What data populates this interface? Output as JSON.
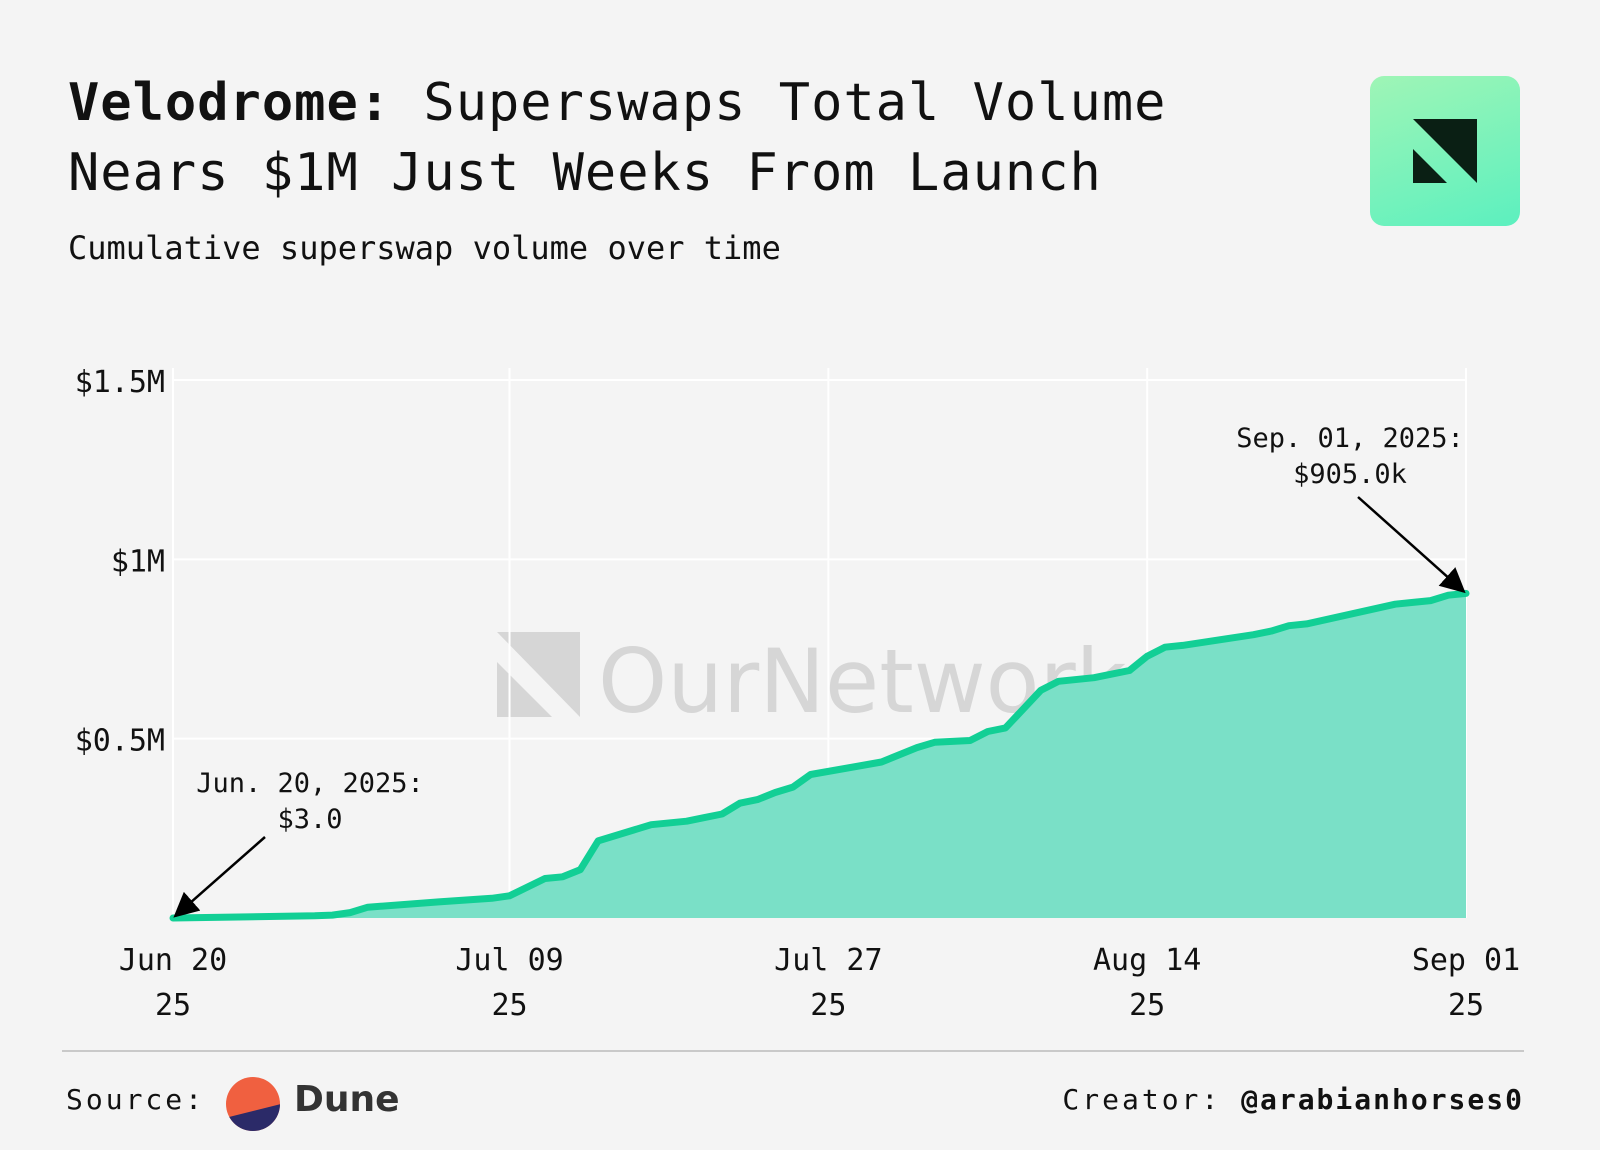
{
  "header": {
    "title_brand": "Velodrome:",
    "title_rest": " Superswaps Total Volume Nears $1M Just Weeks From Launch",
    "subtitle": "Cumulative superswap volume over time"
  },
  "footer": {
    "source_label": "Source:",
    "source_name": "Dune",
    "creator_label": "Creator:",
    "creator_handle": "@arabianhorses0"
  },
  "watermark": {
    "text": "OurNetwork"
  },
  "colors": {
    "line": "#12cf95",
    "area": "#7ae0c7",
    "grid": "#ffffff",
    "text": "#111111",
    "watermark": "#d6d6d6"
  },
  "chart_data": {
    "type": "area",
    "title": "Cumulative superswap volume over time",
    "xlim": [
      "2025-06-20",
      "2025-09-01"
    ],
    "ylim": [
      0,
      1500000
    ],
    "y_ticks": [
      {
        "value": 500000,
        "label": "$0.5M"
      },
      {
        "value": 1000000,
        "label": "$1M"
      },
      {
        "value": 1500000,
        "label": "$1.5M"
      }
    ],
    "x_ticks": [
      {
        "date": "2025-06-20",
        "label": "Jun 20",
        "sub": "25"
      },
      {
        "date": "2025-07-09",
        "label": "Jul 09",
        "sub": "25"
      },
      {
        "date": "2025-07-27",
        "label": "Jul 27",
        "sub": "25"
      },
      {
        "date": "2025-08-14",
        "label": "Aug 14",
        "sub": "25"
      },
      {
        "date": "2025-09-01",
        "label": "Sep 01",
        "sub": "25"
      }
    ],
    "grid": true,
    "series": [
      {
        "values": [
          [
            "2025-06-20",
            3
          ],
          [
            "2025-06-25",
            4000
          ],
          [
            "2025-06-28",
            6000
          ],
          [
            "2025-06-29",
            8000
          ],
          [
            "2025-06-30",
            15000
          ],
          [
            "2025-07-01",
            30000
          ],
          [
            "2025-07-05",
            45000
          ],
          [
            "2025-07-08",
            55000
          ],
          [
            "2025-07-09",
            62000
          ],
          [
            "2025-07-11",
            110000
          ],
          [
            "2025-07-12",
            115000
          ],
          [
            "2025-07-13",
            135000
          ],
          [
            "2025-07-14",
            215000
          ],
          [
            "2025-07-17",
            260000
          ],
          [
            "2025-07-19",
            270000
          ],
          [
            "2025-07-20",
            280000
          ],
          [
            "2025-07-21",
            290000
          ],
          [
            "2025-07-22",
            320000
          ],
          [
            "2025-07-23",
            330000
          ],
          [
            "2025-07-24",
            350000
          ],
          [
            "2025-07-25",
            365000
          ],
          [
            "2025-07-26",
            400000
          ],
          [
            "2025-07-30",
            435000
          ],
          [
            "2025-08-01",
            475000
          ],
          [
            "2025-08-02",
            490000
          ],
          [
            "2025-08-04",
            495000
          ],
          [
            "2025-08-05",
            520000
          ],
          [
            "2025-08-06",
            530000
          ],
          [
            "2025-08-08",
            635000
          ],
          [
            "2025-08-09",
            660000
          ],
          [
            "2025-08-11",
            670000
          ],
          [
            "2025-08-12",
            680000
          ],
          [
            "2025-08-13",
            690000
          ],
          [
            "2025-08-14",
            730000
          ],
          [
            "2025-08-15",
            755000
          ],
          [
            "2025-08-16",
            760000
          ],
          [
            "2025-08-20",
            790000
          ],
          [
            "2025-08-21",
            800000
          ],
          [
            "2025-08-22",
            815000
          ],
          [
            "2025-08-23",
            820000
          ],
          [
            "2025-08-28",
            875000
          ],
          [
            "2025-08-29",
            880000
          ],
          [
            "2025-08-30",
            885000
          ],
          [
            "2025-08-31",
            900000
          ],
          [
            "2025-09-01",
            905000
          ]
        ]
      }
    ],
    "annotations": [
      {
        "date": "2025-06-20",
        "value": 3,
        "text_line1": "Jun. 20, 2025:",
        "text_line2": "$3.0"
      },
      {
        "date": "2025-09-01",
        "value": 905000,
        "text_line1": "Sep. 01, 2025:",
        "text_line2": "$905.0k"
      }
    ]
  }
}
